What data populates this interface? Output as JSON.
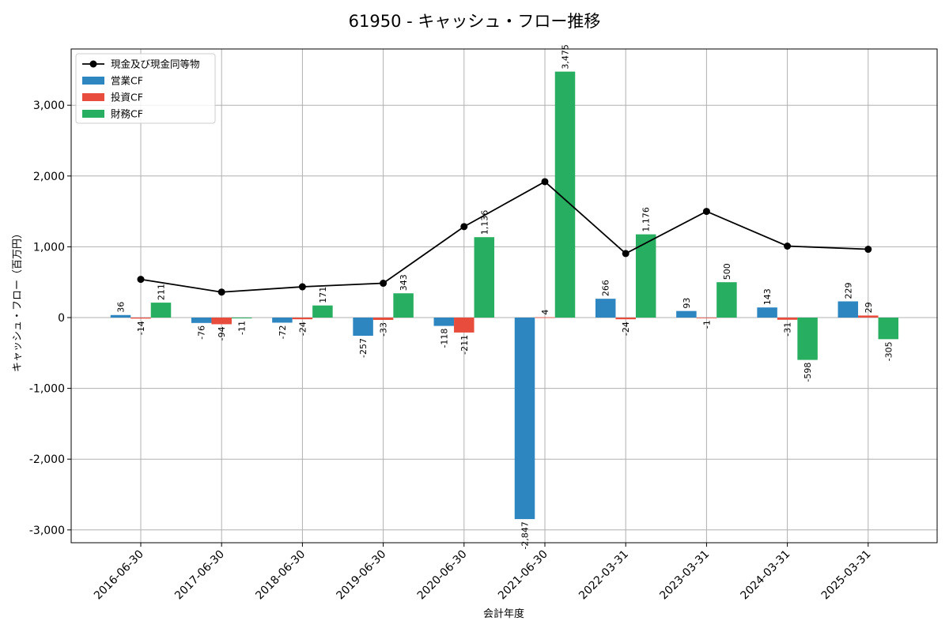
{
  "chart_data": {
    "type": "bar",
    "title": "61950 - キャッシュ・フロー推移",
    "xlabel": "会計年度",
    "ylabel": "キャッシュ・フロー（百万円）",
    "ylim": [
      -3200,
      3800
    ],
    "yticks": [
      -3000,
      -2000,
      -1000,
      0,
      1000,
      2000,
      3000
    ],
    "ytick_labels": [
      "-3,000",
      "-2,000",
      "-1,000",
      "0",
      "1,000",
      "2,000",
      "3,000"
    ],
    "grid": true,
    "legend_position": "top-left",
    "categories": [
      "2016-06-30",
      "2017-06-30",
      "2018-06-30",
      "2019-06-30",
      "2020-06-30",
      "2021-06-30",
      "2022-03-31",
      "2023-03-31",
      "2024-03-31",
      "2025-03-31"
    ],
    "series": [
      {
        "name": "営業CF",
        "kind": "bar",
        "color": "#2e86c1",
        "values": [
          36,
          -76,
          -72,
          -257,
          -118,
          -2847,
          266,
          93,
          143,
          229
        ],
        "labels": [
          "36",
          "-76",
          "-72",
          "-257",
          "-118",
          "-2,847",
          "266",
          "93",
          "143",
          "229"
        ]
      },
      {
        "name": "投資CF",
        "kind": "bar",
        "color": "#e74c3c",
        "values": [
          -14,
          -94,
          -24,
          -33,
          -211,
          4,
          -24,
          -1,
          -31,
          29
        ],
        "labels": [
          "-14",
          "-94",
          "-24",
          "-33",
          "-211",
          "4",
          "-24",
          "-1",
          "-31",
          "29"
        ]
      },
      {
        "name": "財務CF",
        "kind": "bar",
        "color": "#27ae60",
        "values": [
          211,
          -11,
          171,
          343,
          1136,
          3475,
          1176,
          500,
          -598,
          -305
        ],
        "labels": [
          "211",
          "-11",
          "171",
          "343",
          "1,136",
          "3,475",
          "1,176",
          "500",
          "-598",
          "-305"
        ]
      },
      {
        "name": "現金及び現金同等物",
        "kind": "line",
        "color": "#000000",
        "values": [
          540,
          360,
          435,
          485,
          1285,
          1920,
          905,
          1500,
          1010,
          965
        ]
      }
    ]
  }
}
